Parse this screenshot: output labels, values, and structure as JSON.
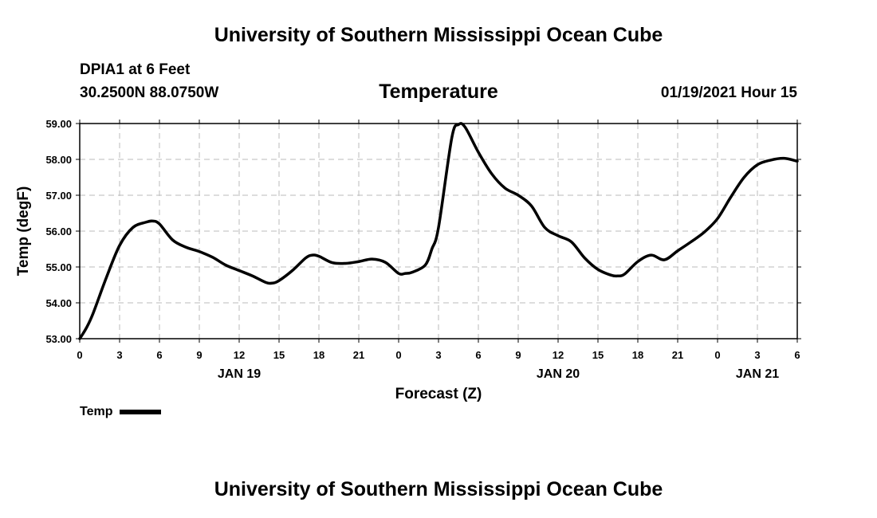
{
  "header": {
    "title": "University of Southern Mississippi Ocean Cube",
    "station": "DPIA1 at 6 Feet",
    "coords": "30.2500N 88.0750W",
    "parameter": "Temperature",
    "issued": "01/19/2021 Hour 15"
  },
  "footer": {
    "title": "University of Southern Mississippi Ocean Cube"
  },
  "legend": {
    "label": "Temp",
    "color": "#000000"
  },
  "chart_data": {
    "type": "line",
    "title": "Temperature",
    "xlabel": "Forecast (Z)",
    "ylabel": "Temp (degF)",
    "xlim": [
      0,
      54
    ],
    "ylim": [
      53,
      59
    ],
    "x_ticks": [
      {
        "x": 0,
        "label": "0"
      },
      {
        "x": 3,
        "label": "3"
      },
      {
        "x": 6,
        "label": "6"
      },
      {
        "x": 9,
        "label": "9"
      },
      {
        "x": 12,
        "label": "12"
      },
      {
        "x": 15,
        "label": "15"
      },
      {
        "x": 18,
        "label": "18"
      },
      {
        "x": 21,
        "label": "21"
      },
      {
        "x": 24,
        "label": "0"
      },
      {
        "x": 27,
        "label": "3"
      },
      {
        "x": 30,
        "label": "6"
      },
      {
        "x": 33,
        "label": "9"
      },
      {
        "x": 36,
        "label": "12"
      },
      {
        "x": 39,
        "label": "15"
      },
      {
        "x": 42,
        "label": "18"
      },
      {
        "x": 45,
        "label": "21"
      },
      {
        "x": 48,
        "label": "0"
      },
      {
        "x": 51,
        "label": "3"
      },
      {
        "x": 54,
        "label": "6"
      }
    ],
    "day_labels": [
      {
        "x": 12,
        "label": "JAN 19"
      },
      {
        "x": 36,
        "label": "JAN 20"
      },
      {
        "x": 51,
        "label": "JAN 21"
      }
    ],
    "y_ticks": [
      "53.00",
      "54.00",
      "55.00",
      "56.00",
      "57.00",
      "58.00",
      "59.00"
    ],
    "grid": true,
    "series": [
      {
        "name": "Temp",
        "color": "#000000",
        "x": [
          0,
          0.5,
          1,
          2,
          3,
          4,
          5,
          5.5,
          6,
          7,
          8,
          9,
          10,
          11,
          12,
          13,
          14,
          14.5,
          15,
          16,
          17,
          17.5,
          18,
          19,
          20,
          21,
          22,
          23,
          24,
          24.5,
          25,
          26,
          26.5,
          27,
          28,
          28.5,
          29,
          30,
          31,
          32,
          33,
          34,
          35,
          36,
          37,
          38,
          39,
          40,
          40.5,
          41,
          42,
          43,
          44,
          45,
          46,
          47,
          48,
          49,
          50,
          51,
          52,
          53,
          54
        ],
        "values": [
          53.0,
          53.3,
          53.7,
          54.7,
          55.6,
          56.1,
          56.25,
          56.28,
          56.2,
          55.75,
          55.55,
          55.43,
          55.27,
          55.05,
          54.9,
          54.75,
          54.57,
          54.55,
          54.62,
          54.9,
          55.25,
          55.33,
          55.3,
          55.12,
          55.1,
          55.15,
          55.22,
          55.13,
          54.82,
          54.82,
          54.85,
          55.05,
          55.5,
          56.1,
          58.6,
          58.97,
          58.9,
          58.2,
          57.6,
          57.2,
          57.0,
          56.7,
          56.1,
          55.87,
          55.7,
          55.25,
          54.93,
          54.77,
          54.75,
          54.8,
          55.15,
          55.33,
          55.2,
          55.45,
          55.7,
          55.97,
          56.35,
          56.95,
          57.5,
          57.85,
          57.98,
          58.03,
          57.95
        ]
      }
    ]
  }
}
